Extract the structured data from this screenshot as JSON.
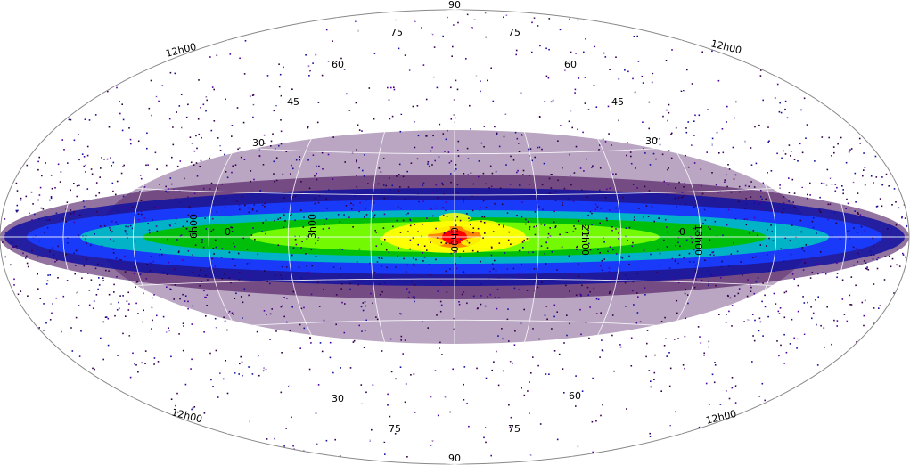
{
  "map": {
    "projection": "aitoff-hammer",
    "coordinate_system": "equatorial-grid",
    "background": "#ffffff",
    "ellipse_outline_color": "#888888",
    "grid_color": "#ffffff",
    "colormap": [
      "#ffffff",
      "#3a0050",
      "#1010a0",
      "#1a3cff",
      "#00c0c0",
      "#00c000",
      "#80ff00",
      "#ffff00",
      "#ff8000",
      "#ff0000"
    ],
    "labels": {
      "top_pole": "90",
      "bottom_pole": "90",
      "ra_upper_left": "12h00",
      "ra_upper_right": "12h00",
      "ra_lower_left": "12h00",
      "ra_lower_right": "12h00",
      "ra_center_left": "6h00",
      "ra_inner_left": "3h00",
      "ra_center": "0h00",
      "ra_inner_right": "21h00",
      "ra_center_right": "18h00",
      "lat_75_ul": "75",
      "lat_75_ur": "75",
      "lat_60_ul": "60",
      "lat_60_ur": "60",
      "lat_45_ul": "45",
      "lat_45_ur": "45",
      "lat_30_ul": "30",
      "lat_30_ur": "30",
      "lat_0_left": "0",
      "lat_0_right": "0",
      "lat_30_ll": "30",
      "lat_60_lr": "60",
      "lat_75_ll": "75",
      "lat_75_lr": "75"
    }
  }
}
